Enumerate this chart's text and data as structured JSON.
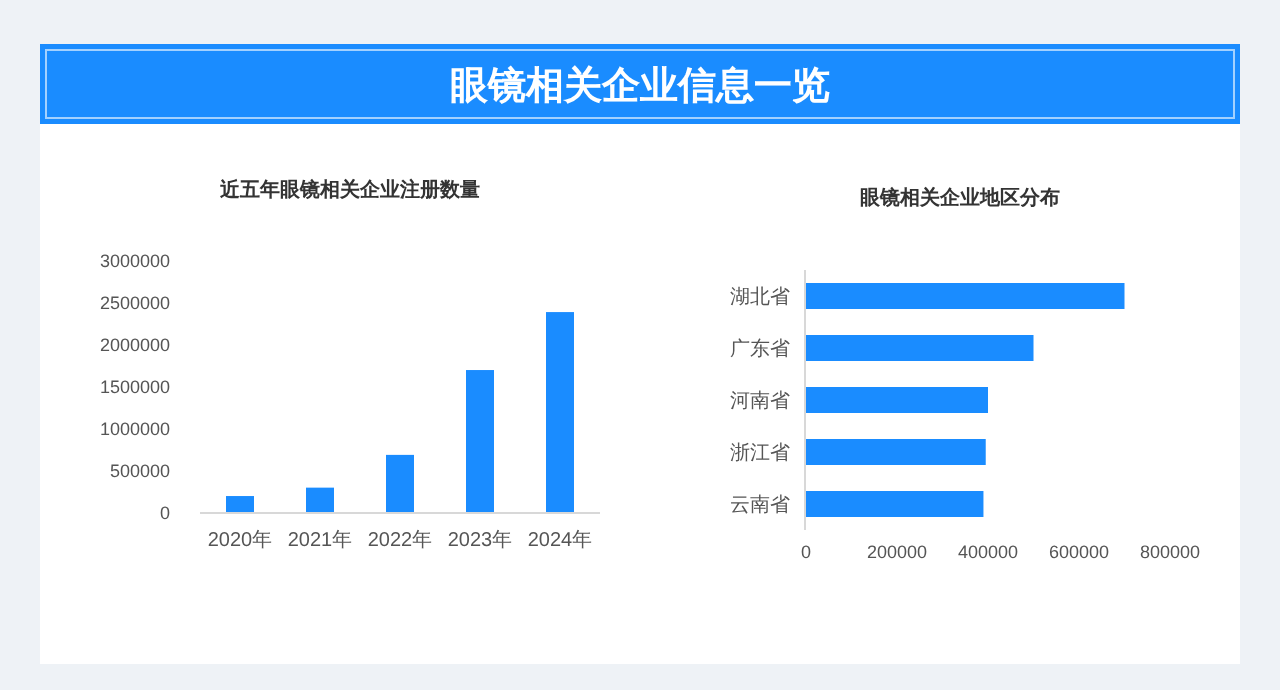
{
  "chart_data": [
    {
      "type": "other",
      "title": "眼镜相关企业信息一览"
    },
    {
      "type": "bar",
      "title": "近五年眼镜相关企业注册数量",
      "categories": [
        "2020年",
        "2021年",
        "2022年",
        "2023年",
        "2024年"
      ],
      "values": [
        190000,
        290000,
        680000,
        1690000,
        2380000
      ],
      "color": "#1a8cff",
      "ylim": [
        0,
        3000000
      ],
      "yticks": [
        0,
        500000,
        1000000,
        1500000,
        2000000,
        2500000,
        3000000
      ],
      "grid": false
    },
    {
      "type": "bar",
      "orientation": "horizontal",
      "title": "眼镜相关企业地区分布",
      "categories": [
        "湖北省",
        "广东省",
        "河南省",
        "浙江省",
        "云南省"
      ],
      "values": [
        700000,
        500000,
        400000,
        395000,
        390000
      ],
      "color": "#1a8cff",
      "xlim": [
        0,
        800000
      ],
      "xticks": [
        0,
        200000,
        400000,
        600000,
        800000
      ],
      "grid": false
    }
  ]
}
